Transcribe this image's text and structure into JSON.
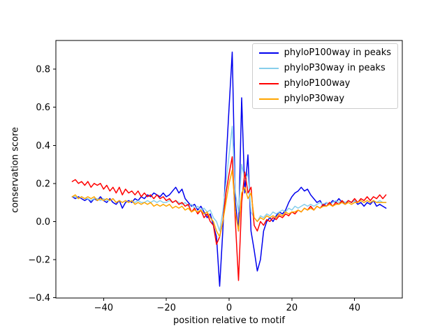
{
  "figure": {
    "background": "#ffffff"
  },
  "chart_data": {
    "type": "line",
    "title": "",
    "xlabel": "position relative to motif",
    "ylabel": "conservation score",
    "xlim": [
      -55.2,
      55.2
    ],
    "ylim": [
      -0.402,
      0.951
    ],
    "xticks": [
      -40,
      -20,
      0,
      20,
      40
    ],
    "yticks": [
      -0.4,
      -0.2,
      0.0,
      0.2,
      0.4,
      0.6,
      0.8
    ],
    "grid": false,
    "legend_position": "upper right",
    "x": [
      -50,
      -49,
      -48,
      -47,
      -46,
      -45,
      -44,
      -43,
      -42,
      -41,
      -40,
      -39,
      -38,
      -37,
      -36,
      -35,
      -34,
      -33,
      -32,
      -31,
      -30,
      -29,
      -28,
      -27,
      -26,
      -25,
      -24,
      -23,
      -22,
      -21,
      -20,
      -19,
      -18,
      -17,
      -16,
      -15,
      -14,
      -13,
      -12,
      -11,
      -10,
      -9,
      -8,
      -7,
      -6,
      -5,
      -4,
      -3,
      -2,
      -1,
      0,
      1,
      2,
      3,
      4,
      5,
      6,
      7,
      8,
      9,
      10,
      11,
      12,
      13,
      14,
      15,
      16,
      17,
      18,
      19,
      20,
      21,
      22,
      23,
      24,
      25,
      26,
      27,
      28,
      29,
      30,
      31,
      32,
      33,
      34,
      35,
      36,
      37,
      38,
      39,
      40,
      41,
      42,
      43,
      44,
      45,
      46,
      47,
      48,
      49,
      50
    ],
    "series": [
      {
        "name": "phyloP100way in peaks",
        "color": "#0000ee",
        "values": [
          0.13,
          0.12,
          0.13,
          0.12,
          0.11,
          0.12,
          0.1,
          0.12,
          0.11,
          0.13,
          0.11,
          0.1,
          0.12,
          0.1,
          0.09,
          0.11,
          0.07,
          0.1,
          0.11,
          0.1,
          0.12,
          0.11,
          0.13,
          0.12,
          0.14,
          0.13,
          0.15,
          0.14,
          0.13,
          0.15,
          0.13,
          0.14,
          0.16,
          0.18,
          0.15,
          0.17,
          0.12,
          0.1,
          0.08,
          0.09,
          0.06,
          0.08,
          0.05,
          0.02,
          0.04,
          -0.02,
          -0.08,
          -0.34,
          -0.05,
          0.3,
          0.6,
          0.89,
          0.1,
          -0.05,
          0.65,
          0.15,
          0.35,
          -0.05,
          -0.15,
          -0.26,
          -0.2,
          -0.05,
          0.0,
          0.02,
          0.0,
          0.03,
          0.05,
          0.04,
          0.06,
          0.1,
          0.13,
          0.15,
          0.16,
          0.18,
          0.16,
          0.17,
          0.14,
          0.12,
          0.1,
          0.11,
          0.08,
          0.1,
          0.09,
          0.11,
          0.1,
          0.12,
          0.1,
          0.09,
          0.11,
          0.1,
          0.11,
          0.09,
          0.1,
          0.08,
          0.1,
          0.09,
          0.11,
          0.08,
          0.09,
          0.08,
          0.07
        ]
      },
      {
        "name": "phyloP30way in peaks",
        "color": "#87ceeb",
        "values": [
          0.13,
          0.13,
          0.12,
          0.13,
          0.12,
          0.12,
          0.11,
          0.12,
          0.12,
          0.11,
          0.12,
          0.11,
          0.11,
          0.12,
          0.1,
          0.11,
          0.1,
          0.11,
          0.1,
          0.11,
          0.1,
          0.11,
          0.1,
          0.1,
          0.11,
          0.1,
          0.11,
          0.1,
          0.11,
          0.1,
          0.1,
          0.11,
          0.1,
          0.11,
          0.1,
          0.09,
          0.1,
          0.08,
          0.09,
          0.07,
          0.08,
          0.06,
          0.07,
          0.05,
          0.06,
          0.02,
          0.0,
          -0.05,
          0.05,
          0.2,
          0.35,
          0.5,
          0.15,
          0.05,
          0.3,
          0.22,
          0.25,
          0.05,
          0.02,
          0.0,
          0.03,
          0.02,
          0.04,
          0.03,
          0.05,
          0.04,
          0.05,
          0.06,
          0.05,
          0.07,
          0.06,
          0.08,
          0.07,
          0.08,
          0.09,
          0.08,
          0.09,
          0.08,
          0.09,
          0.1,
          0.09,
          0.1,
          0.09,
          0.1,
          0.11,
          0.1,
          0.11,
          0.1,
          0.11,
          0.1,
          0.11,
          0.1,
          0.11,
          0.1,
          0.11,
          0.1,
          0.11,
          0.1,
          0.11,
          0.1,
          0.1
        ]
      },
      {
        "name": "phyloP100way",
        "color": "#ff0000",
        "values": [
          0.21,
          0.22,
          0.2,
          0.21,
          0.19,
          0.21,
          0.18,
          0.2,
          0.19,
          0.2,
          0.17,
          0.19,
          0.16,
          0.18,
          0.15,
          0.18,
          0.14,
          0.17,
          0.15,
          0.16,
          0.14,
          0.16,
          0.13,
          0.15,
          0.13,
          0.14,
          0.12,
          0.14,
          0.12,
          0.13,
          0.11,
          0.12,
          0.1,
          0.11,
          0.09,
          0.1,
          0.08,
          0.09,
          0.05,
          0.07,
          0.04,
          0.06,
          0.02,
          0.04,
          0.0,
          -0.02,
          -0.12,
          -0.08,
          0.0,
          0.15,
          0.25,
          0.34,
          0.0,
          -0.31,
          0.1,
          0.26,
          0.15,
          0.18,
          -0.02,
          -0.05,
          0.0,
          -0.02,
          0.01,
          0.0,
          0.02,
          0.01,
          0.03,
          0.02,
          0.04,
          0.03,
          0.05,
          0.04,
          0.06,
          0.05,
          0.07,
          0.06,
          0.08,
          0.06,
          0.08,
          0.07,
          0.09,
          0.08,
          0.1,
          0.08,
          0.1,
          0.09,
          0.11,
          0.09,
          0.11,
          0.1,
          0.12,
          0.1,
          0.12,
          0.11,
          0.13,
          0.11,
          0.13,
          0.12,
          0.14,
          0.12,
          0.14
        ]
      },
      {
        "name": "phyloP30way",
        "color": "#ffa500",
        "values": [
          0.13,
          0.14,
          0.12,
          0.13,
          0.12,
          0.13,
          0.12,
          0.13,
          0.11,
          0.12,
          0.11,
          0.12,
          0.11,
          0.12,
          0.1,
          0.11,
          0.1,
          0.11,
          0.1,
          0.11,
          0.09,
          0.1,
          0.09,
          0.1,
          0.09,
          0.1,
          0.08,
          0.09,
          0.08,
          0.09,
          0.08,
          0.09,
          0.07,
          0.08,
          0.07,
          0.08,
          0.06,
          0.07,
          0.05,
          0.06,
          0.05,
          0.06,
          0.04,
          0.05,
          0.02,
          0.0,
          -0.05,
          -0.08,
          0.0,
          0.1,
          0.2,
          0.27,
          0.05,
          -0.05,
          0.15,
          0.18,
          0.12,
          0.15,
          0.02,
          0.0,
          0.02,
          0.01,
          0.03,
          0.02,
          0.03,
          0.02,
          0.04,
          0.03,
          0.05,
          0.04,
          0.05,
          0.05,
          0.06,
          0.05,
          0.07,
          0.06,
          0.07,
          0.06,
          0.08,
          0.07,
          0.08,
          0.08,
          0.09,
          0.08,
          0.09,
          0.09,
          0.1,
          0.09,
          0.1,
          0.09,
          0.1,
          0.1,
          0.11,
          0.1,
          0.11,
          0.1,
          0.11,
          0.1,
          0.1,
          0.1,
          0.1
        ]
      }
    ]
  }
}
